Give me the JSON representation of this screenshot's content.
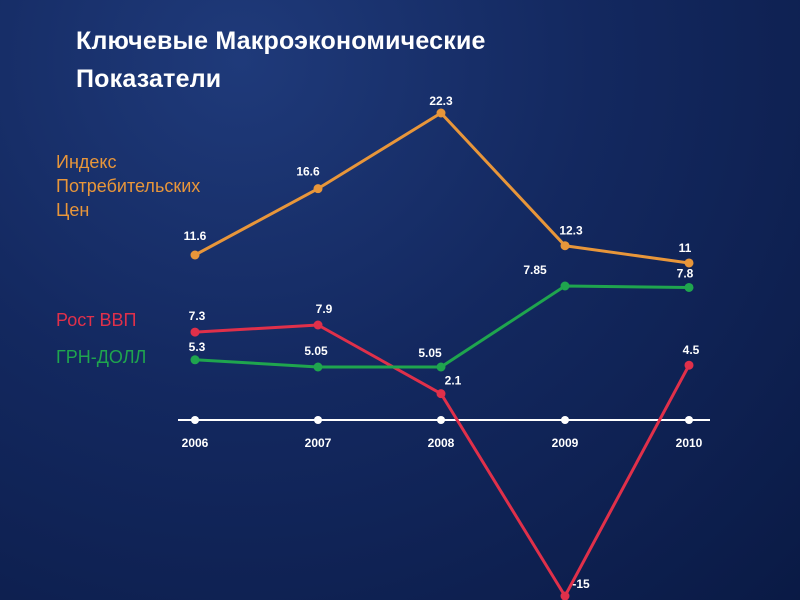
{
  "title_lines": [
    "Ключевые Макроэкономические",
    "Показатели"
  ],
  "colors": {
    "cpi": "#e8963a",
    "gdp": "#e0304a",
    "fx": "#1fa54e",
    "axis": "#ffffff"
  },
  "chart_data": {
    "type": "line",
    "x": [
      "2006",
      "2007",
      "2008",
      "2009",
      "2010"
    ],
    "series": [
      {
        "name": "Индекс Потребительских Цен",
        "values": [
          11.6,
          16.6,
          22.3,
          12.3,
          11
        ]
      },
      {
        "name": "Рост ВВП",
        "values": [
          7.3,
          7.9,
          2.1,
          -15,
          4.5
        ]
      },
      {
        "name": "ГРН-ДОЛЛ",
        "values": [
          5.3,
          5.05,
          5.05,
          7.85,
          7.8
        ]
      }
    ],
    "value_labels": [
      [
        "11.6",
        "16.6",
        "22.3",
        "12.3",
        "11"
      ],
      [
        "7.3",
        "7.9",
        "2.1",
        "-15",
        "4.5"
      ],
      [
        "5.3",
        "5.05",
        "5.05",
        "7.85",
        "7.8"
      ]
    ],
    "legend_lines": [
      [
        "Индекс",
        "Потребительских",
        "Цен"
      ],
      [
        "Рост ВВП"
      ],
      [
        "ГРН-ДОЛЛ"
      ]
    ],
    "legend": "left",
    "grid": false
  }
}
